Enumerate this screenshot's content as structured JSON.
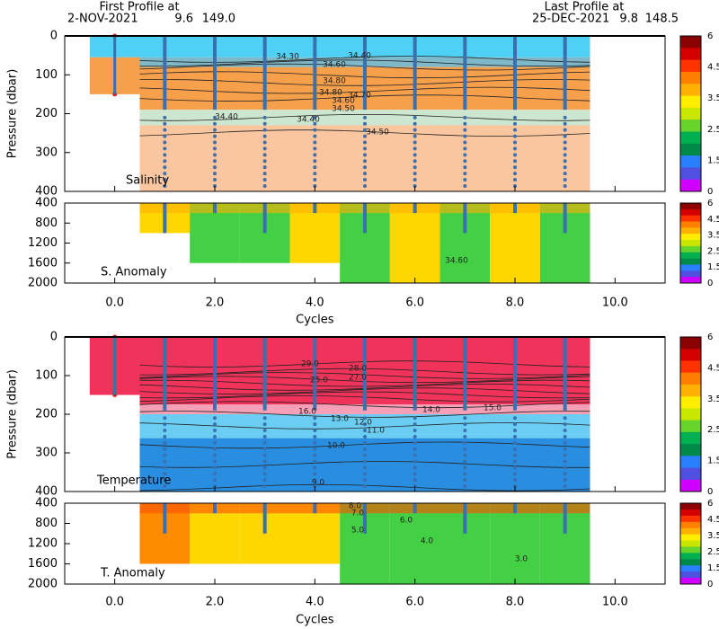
{
  "header": {
    "first_title": "First Profile at",
    "first_date": "2-NOV-2021",
    "first_lat": "9.6",
    "first_lon": "149.0",
    "last_title": "Last Profile at",
    "last_date": "25-DEC-2021",
    "last_lat": "9.8",
    "last_lon": "148.5"
  },
  "x_axis": {
    "label": "Cycles",
    "xlim": [
      -1,
      11
    ],
    "xticks": [
      {
        "value": 0,
        "label": "0.0"
      },
      {
        "value": 2,
        "label": "2.0"
      },
      {
        "value": 4,
        "label": "4.0"
      },
      {
        "value": 6,
        "label": "6.0"
      },
      {
        "value": 8,
        "label": "8.0"
      },
      {
        "value": 10,
        "label": "10.0"
      }
    ]
  },
  "panels": [
    {
      "y_axis_label": "Pressure (dbar)",
      "label": "Salinity",
      "anomaly_label": "S. Anomaly",
      "upper_ylim": [
        0,
        400
      ],
      "upper_yticks": [
        0,
        100,
        200,
        300,
        400
      ],
      "lower_ylim": [
        400,
        2000
      ],
      "lower_yticks": [
        400,
        800,
        1200,
        1600,
        2000
      ],
      "contour_labels": [
        "34.30",
        "34.40",
        "34.60",
        "34.80",
        "34.70",
        "34.80",
        "34.60",
        "34.50",
        "34.40",
        "34.40",
        "34.50"
      ],
      "anomaly_contour_labels": [
        "34.60"
      ],
      "colorbar_ticks": [
        6,
        4.5,
        3.5,
        2.5,
        1.5,
        0
      ]
    },
    {
      "y_axis_label": "Pressure (dbar)",
      "label": "Temperature",
      "anomaly_label": "T. Anomaly",
      "upper_ylim": [
        0,
        400
      ],
      "upper_yticks": [
        0,
        100,
        200,
        300,
        400
      ],
      "lower_ylim": [
        400,
        2000
      ],
      "lower_yticks": [
        400,
        800,
        1200,
        1600,
        2000
      ],
      "contour_labels": [
        "29.0",
        "28.0",
        "27.0",
        "25.0",
        "16.0",
        "13.0",
        "12.0",
        "11.0",
        "14.0",
        "15.0",
        "10.0",
        "9.0"
      ],
      "anomaly_contour_labels": [
        "8.0",
        "7.0",
        "6.0",
        "5.0",
        "4.0",
        "3.0"
      ],
      "colorbar_ticks": [
        6,
        4.5,
        3.5,
        2.5,
        1.5,
        0
      ]
    }
  ]
}
